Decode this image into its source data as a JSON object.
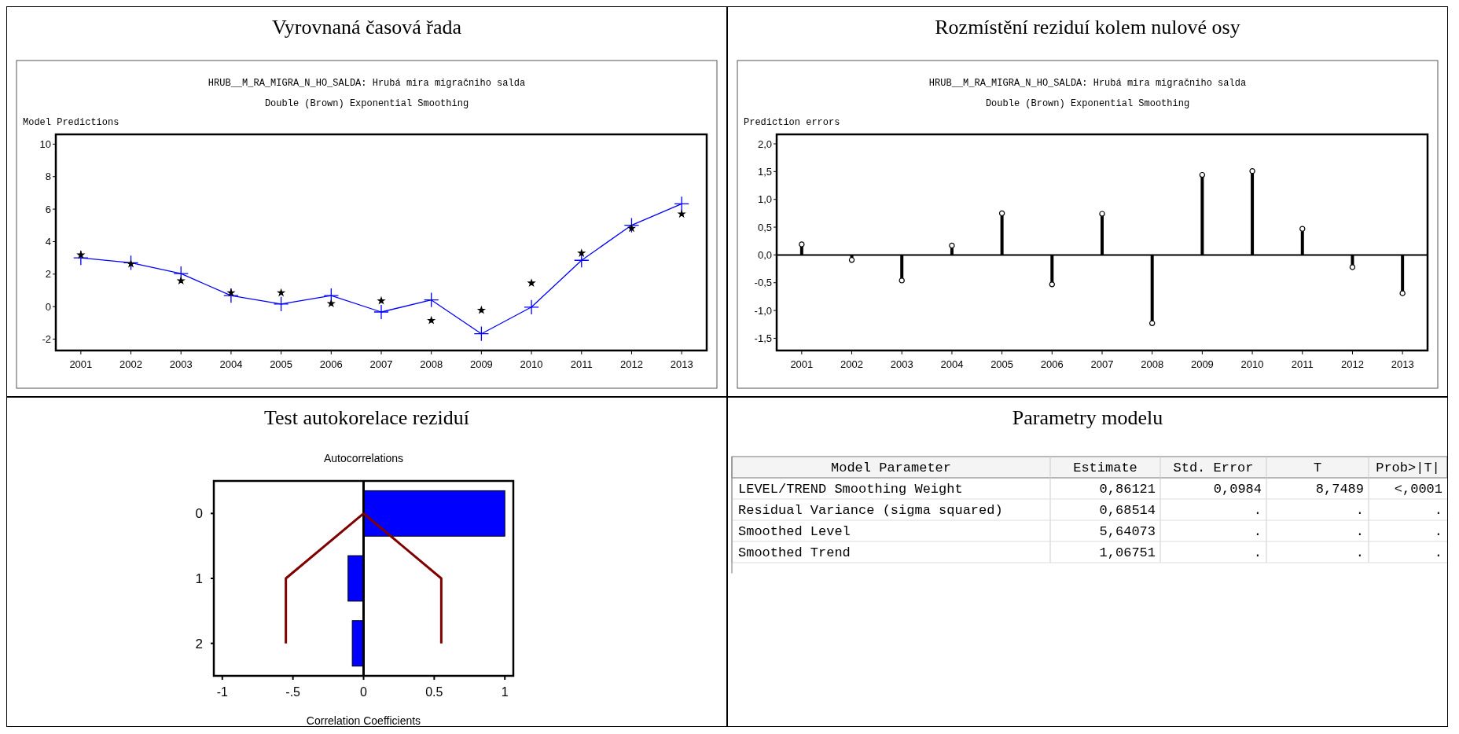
{
  "chart_data": [
    {
      "type": "line",
      "title": "Vyrovnaná časová řada",
      "subtitle": "HRUB__M_RA_MIGRA_N_HO_SALDA: Hrubá mira migračniho salda",
      "annotations": [
        "Double (Brown) Exponential Smoothing"
      ],
      "ylabel": "Model Predictions",
      "categories": [
        "2001",
        "2002",
        "2003",
        "2004",
        "2005",
        "2006",
        "2007",
        "2008",
        "2009",
        "2010",
        "2011",
        "2012",
        "2013"
      ],
      "series": [
        {
          "type": "line",
          "color": "#0000ff",
          "marker": "cross",
          "values": [
            3.0,
            2.7,
            2.03,
            0.68,
            0.16,
            0.68,
            -0.33,
            0.41,
            -1.67,
            -0.03,
            2.85,
            5.01,
            6.33
          ]
        },
        {
          "type": "scatter",
          "color": "#000000",
          "marker": "star",
          "values": [
            3.18,
            2.63,
            1.59,
            0.85,
            0.85,
            0.19,
            0.36,
            -0.85,
            -0.22,
            1.45,
            3.29,
            4.82,
            5.7
          ]
        }
      ],
      "ylim": [
        -2.7,
        10.6
      ],
      "yticks": [
        -2,
        0,
        2,
        4,
        6,
        8,
        10
      ]
    },
    {
      "type": "lollipop",
      "title": "Rozmístění reziduí kolem nulové osy",
      "subtitle": "HRUB__M_RA_MIGRA_N_HO_SALDA: Hrubá mira migračniho salda",
      "annotations": [
        "Double (Brown) Exponential Smoothing"
      ],
      "ylabel": "Prediction errors",
      "categories": [
        "2001",
        "2002",
        "2003",
        "2004",
        "2005",
        "2006",
        "2007",
        "2008",
        "2009",
        "2010",
        "2011",
        "2012",
        "2013"
      ],
      "series": [
        {
          "color": "#000000",
          "marker": "circle",
          "values": [
            0.19,
            -0.09,
            -0.46,
            0.17,
            0.75,
            -0.53,
            0.74,
            -1.23,
            1.44,
            1.51,
            0.47,
            -0.22,
            -0.69
          ]
        }
      ],
      "ylim": [
        -1.72,
        2.17
      ],
      "yticks": [
        {
          "value": -1.5,
          "label": "-1,5"
        },
        {
          "value": -1,
          "label": "-1,0"
        },
        {
          "value": -0.5,
          "label": "-0,5"
        },
        {
          "value": 0,
          "label": "0,0"
        },
        {
          "value": 0.5,
          "label": "0,5"
        },
        {
          "value": 1,
          "label": "1,0"
        },
        {
          "value": 1.5,
          "label": "1,5"
        },
        {
          "value": 2,
          "label": "2,0"
        }
      ]
    },
    {
      "type": "bar",
      "orientation": "horizontal",
      "title": "Test autokorelace reziduí",
      "subtitle": "Autocorrelations",
      "xlabel": "Correlation Coefficients",
      "categories": [
        "0",
        "1",
        "2"
      ],
      "series": [
        {
          "type": "bar",
          "color": "#0000ff",
          "values": [
            1.0,
            -0.11,
            -0.08
          ]
        },
        {
          "type": "line",
          "color": "#800000",
          "values": [
            0,
            0.55,
            0.55
          ]
        },
        {
          "type": "line",
          "color": "#800000",
          "values": [
            0,
            -0.55,
            -0.55
          ]
        }
      ],
      "xlim": [
        -1.06,
        1.06
      ],
      "xticks": [
        -1,
        {
          "value": -0.5,
          "label": "-.5"
        },
        0,
        0.5,
        1
      ],
      "ref_lines": [
        {
          "axis": "x",
          "value": 0,
          "color": "#000000"
        }
      ]
    },
    {
      "type": "other",
      "title": "Parametry modelu",
      "categories": [
        "Model Parameter",
        "Estimate",
        "Std. Error",
        "T",
        "Prob>|T|"
      ],
      "annotations": [
        "LEVEL/TREND Smoothing Weight",
        "0,86121",
        "0,0984",
        "8,7489",
        "<,0001",
        "Residual Variance (sigma squared)",
        "0,68514",
        ".",
        ".",
        ".",
        "Smoothed Level",
        "5,64073",
        ".",
        ".",
        ".",
        "Smoothed Trend",
        "1,06751",
        ".",
        ".",
        "."
      ]
    }
  ]
}
